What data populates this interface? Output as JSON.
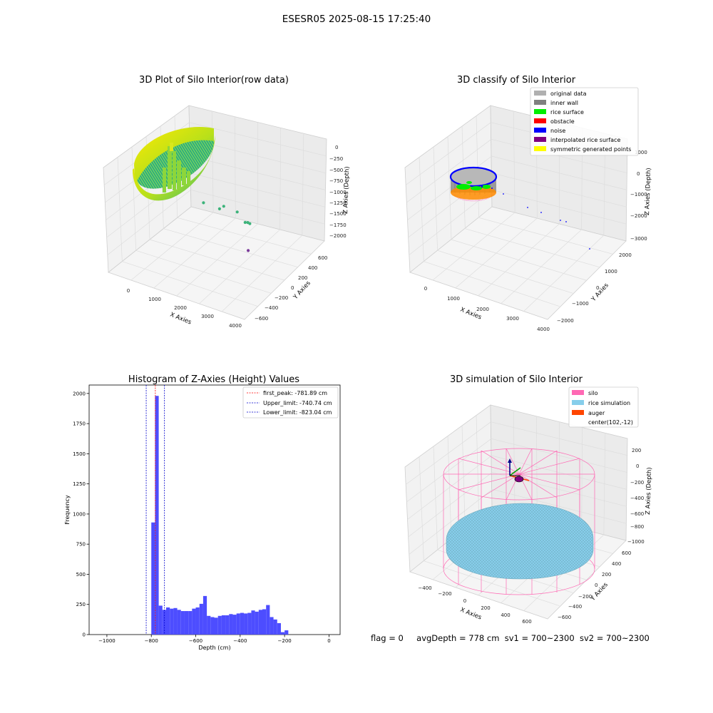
{
  "figure": {
    "suptitle": "ESESR05 2025-08-15 17:25:40",
    "footer": {
      "flag": "flag = 0",
      "avg_depth": "avgDepth = 778 cm",
      "sv1": "sv1 = 700~2300",
      "sv2": "sv2 = 700~2300"
    }
  },
  "colors": {
    "original": "#b0b0b0",
    "wall": "#808080",
    "rice": "#00ee00",
    "obstacle": "#ff0000",
    "noise": "#0000ff",
    "interp": "#800080",
    "symmetric": "#ffff00",
    "silo": "#ff69b4",
    "rice_sim": "#87ceeb",
    "auger": "#ff4500",
    "hist_bar": "#4d4dff",
    "peak_line": "#ff0000",
    "limit_line": "#0000cc"
  },
  "chart_data": [
    {
      "type": "scatter",
      "title": "3D Plot of Silo Interior(row data)",
      "xlabel": "X Axies",
      "ylabel": "Y Axies",
      "zlabel": "Z Axies (Depth)",
      "x_ticks": [
        "0",
        "1000",
        "2000",
        "3000",
        "4000"
      ],
      "y_ticks": [
        "600",
        "400",
        "200",
        "0",
        "−200",
        "−400",
        "−600"
      ],
      "z_ticks": [
        "0",
        "−250",
        "−500",
        "−750",
        "−1000",
        "−1250",
        "−1500",
        "−1750",
        "−2000"
      ],
      "outlier_points": [
        {
          "x": 1500,
          "y": 100,
          "z": -1250
        },
        {
          "x": 2100,
          "y": 0,
          "z": -1270
        },
        {
          "x": 2100,
          "y": 100,
          "z": -1300
        },
        {
          "x": 2450,
          "y": -100,
          "z": -1450
        },
        {
          "x": 2900,
          "y": 0,
          "z": -1650
        },
        {
          "x": 3000,
          "y": 0,
          "z": -1620
        },
        {
          "x": 3000,
          "y": -50,
          "z": -1700
        },
        {
          "x": 3950,
          "y": 600,
          "z": -2000
        }
      ]
    },
    {
      "type": "scatter",
      "title": "3D classify of Silo Interior",
      "xlabel": "X Axies",
      "ylabel": "Y Axies",
      "zlabel": "Z Axies (Depth)",
      "x_ticks": [
        "0",
        "1000",
        "2000",
        "3000",
        "4000"
      ],
      "y_ticks": [
        "2000",
        "1000",
        "0",
        "−1000",
        "−2000"
      ],
      "z_ticks": [
        "1000",
        "0",
        "−1000",
        "−2000",
        "−3000"
      ],
      "legend": [
        "original data",
        "inner wall",
        "rice surface",
        "obstacle",
        "noise",
        "interpolated rice surface",
        "symmetric generated points"
      ],
      "legend_position": "top-right"
    },
    {
      "type": "bar",
      "title": "Histogram of Z-Axies (Height) Values",
      "xlabel": "Depth (cm)",
      "ylabel": "Frequency",
      "xlim": [
        -1080,
        50
      ],
      "ylim": [
        0,
        2070
      ],
      "x_ticks": [
        -1000,
        -800,
        -600,
        -400,
        -200,
        0
      ],
      "x_tick_labels": [
        "−1000",
        "−800",
        "−600",
        "−400",
        "−200",
        "0"
      ],
      "y_ticks": [
        0,
        250,
        500,
        750,
        1000,
        1250,
        1500,
        1750,
        2000
      ],
      "y_tick_labels": [
        "0",
        "250",
        "500",
        "750",
        "1000",
        "1250",
        "1500",
        "1750",
        "2000"
      ],
      "bin_edges_start": -800,
      "bin_width": 16.67,
      "values": [
        930,
        1980,
        240,
        205,
        225,
        215,
        220,
        205,
        195,
        195,
        195,
        215,
        225,
        255,
        320,
        155,
        145,
        140,
        155,
        160,
        160,
        170,
        165,
        175,
        180,
        175,
        180,
        200,
        190,
        205,
        210,
        245,
        145,
        125,
        95,
        20,
        35
      ],
      "vlines": [
        {
          "name": "first_peak: -781.89 cm",
          "x": -781.89,
          "style": "peak"
        },
        {
          "name": "Upper_limit: -740.74 cm",
          "x": -740.74,
          "style": "limit"
        },
        {
          "name": "Lower_limit: -823.04 cm",
          "x": -823.04,
          "style": "limit"
        }
      ],
      "legend_position": "top-right"
    },
    {
      "type": "scatter",
      "title": "3D simulation of Silo Interior",
      "xlabel": "X Axies",
      "ylabel": "Y Axies",
      "zlabel": "Z Axies (Depth)",
      "x_ticks": [
        "−400",
        "−200",
        "0",
        "200",
        "400",
        "600"
      ],
      "y_ticks": [
        "600",
        "400",
        "200",
        "0",
        "−200",
        "−400",
        "−600"
      ],
      "z_ticks": [
        "200",
        "0",
        "−200",
        "−400",
        "−600",
        "−800",
        "−1000"
      ],
      "legend": [
        "silo",
        "rice simulation",
        "auger",
        "center(102,-12)"
      ],
      "legend_position": "top-right"
    }
  ]
}
